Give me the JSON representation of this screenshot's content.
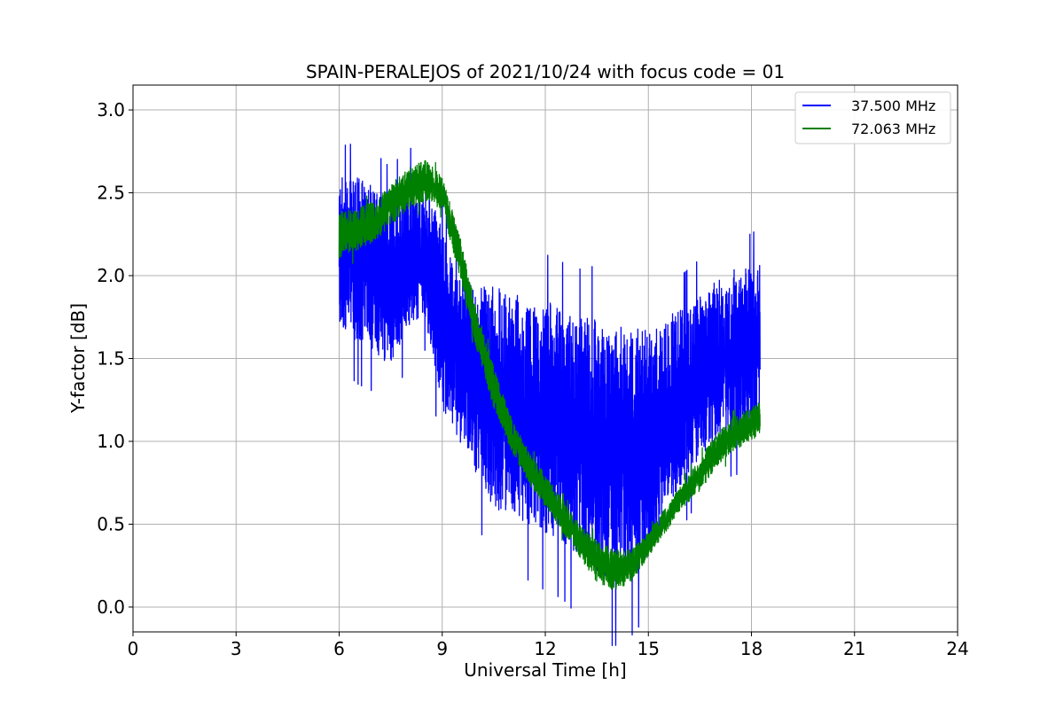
{
  "chart_data": {
    "type": "line",
    "title": "SPAIN-PERALEJOS of 2021/10/24 with focus code = 01",
    "xlabel": "Universal Time [h]",
    "ylabel": "Y-factor [dB]",
    "xlim": [
      0,
      24
    ],
    "ylim": [
      -0.15,
      3.15
    ],
    "xticks": [
      0,
      3,
      6,
      9,
      12,
      15,
      18,
      21,
      24
    ],
    "yticks": [
      0.0,
      0.5,
      1.0,
      1.5,
      2.0,
      2.5,
      3.0
    ],
    "xtick_labels": [
      "0",
      "3",
      "6",
      "9",
      "12",
      "15",
      "18",
      "21",
      "24"
    ],
    "ytick_labels": [
      "0.0",
      "0.5",
      "1.0",
      "1.5",
      "2.0",
      "2.5",
      "3.0"
    ],
    "grid": true,
    "legend_position": "top-right",
    "series": [
      {
        "name": "37.500 MHz",
        "color": "#0000ff",
        "x": [
          6.0,
          6.5,
          7.0,
          7.5,
          8.0,
          8.5,
          9.0,
          9.5,
          10.0,
          10.5,
          11.0,
          11.5,
          12.0,
          12.5,
          13.0,
          13.5,
          14.0,
          14.5,
          15.0,
          15.5,
          16.0,
          16.5,
          17.0,
          17.5,
          18.0,
          18.25
        ],
        "low": [
          1.7,
          1.6,
          1.55,
          1.45,
          1.7,
          1.75,
          1.2,
          1.0,
          0.8,
          0.6,
          0.55,
          0.5,
          0.45,
          0.4,
          0.3,
          0.2,
          0.15,
          0.2,
          0.3,
          0.55,
          0.75,
          0.9,
          1.0,
          1.05,
          1.05,
          1.1
        ],
        "high": [
          2.6,
          2.6,
          2.55,
          2.45,
          2.6,
          2.55,
          2.3,
          2.0,
          1.95,
          1.95,
          1.9,
          1.85,
          1.85,
          1.8,
          1.75,
          1.75,
          1.7,
          1.7,
          1.7,
          1.75,
          1.8,
          1.9,
          2.0,
          2.05,
          2.05,
          2.1
        ]
      },
      {
        "name": "72.063 MHz",
        "color": "#008000",
        "x": [
          6.0,
          6.5,
          7.0,
          7.5,
          8.0,
          8.5,
          9.0,
          9.5,
          10.0,
          10.5,
          11.0,
          11.5,
          12.0,
          12.5,
          13.0,
          13.5,
          14.0,
          14.5,
          15.0,
          15.5,
          16.0,
          16.5,
          17.0,
          17.5,
          18.0,
          18.25
        ],
        "low": [
          2.1,
          2.15,
          2.2,
          2.3,
          2.4,
          2.45,
          2.4,
          2.0,
          1.55,
          1.2,
          0.95,
          0.75,
          0.6,
          0.45,
          0.3,
          0.15,
          0.1,
          0.15,
          0.3,
          0.45,
          0.6,
          0.7,
          0.85,
          0.95,
          1.0,
          1.05
        ],
        "high": [
          2.4,
          2.4,
          2.45,
          2.55,
          2.65,
          2.7,
          2.6,
          2.25,
          1.8,
          1.45,
          1.15,
          0.95,
          0.8,
          0.65,
          0.5,
          0.4,
          0.35,
          0.35,
          0.45,
          0.6,
          0.75,
          0.9,
          1.05,
          1.15,
          1.2,
          1.25
        ]
      }
    ]
  }
}
